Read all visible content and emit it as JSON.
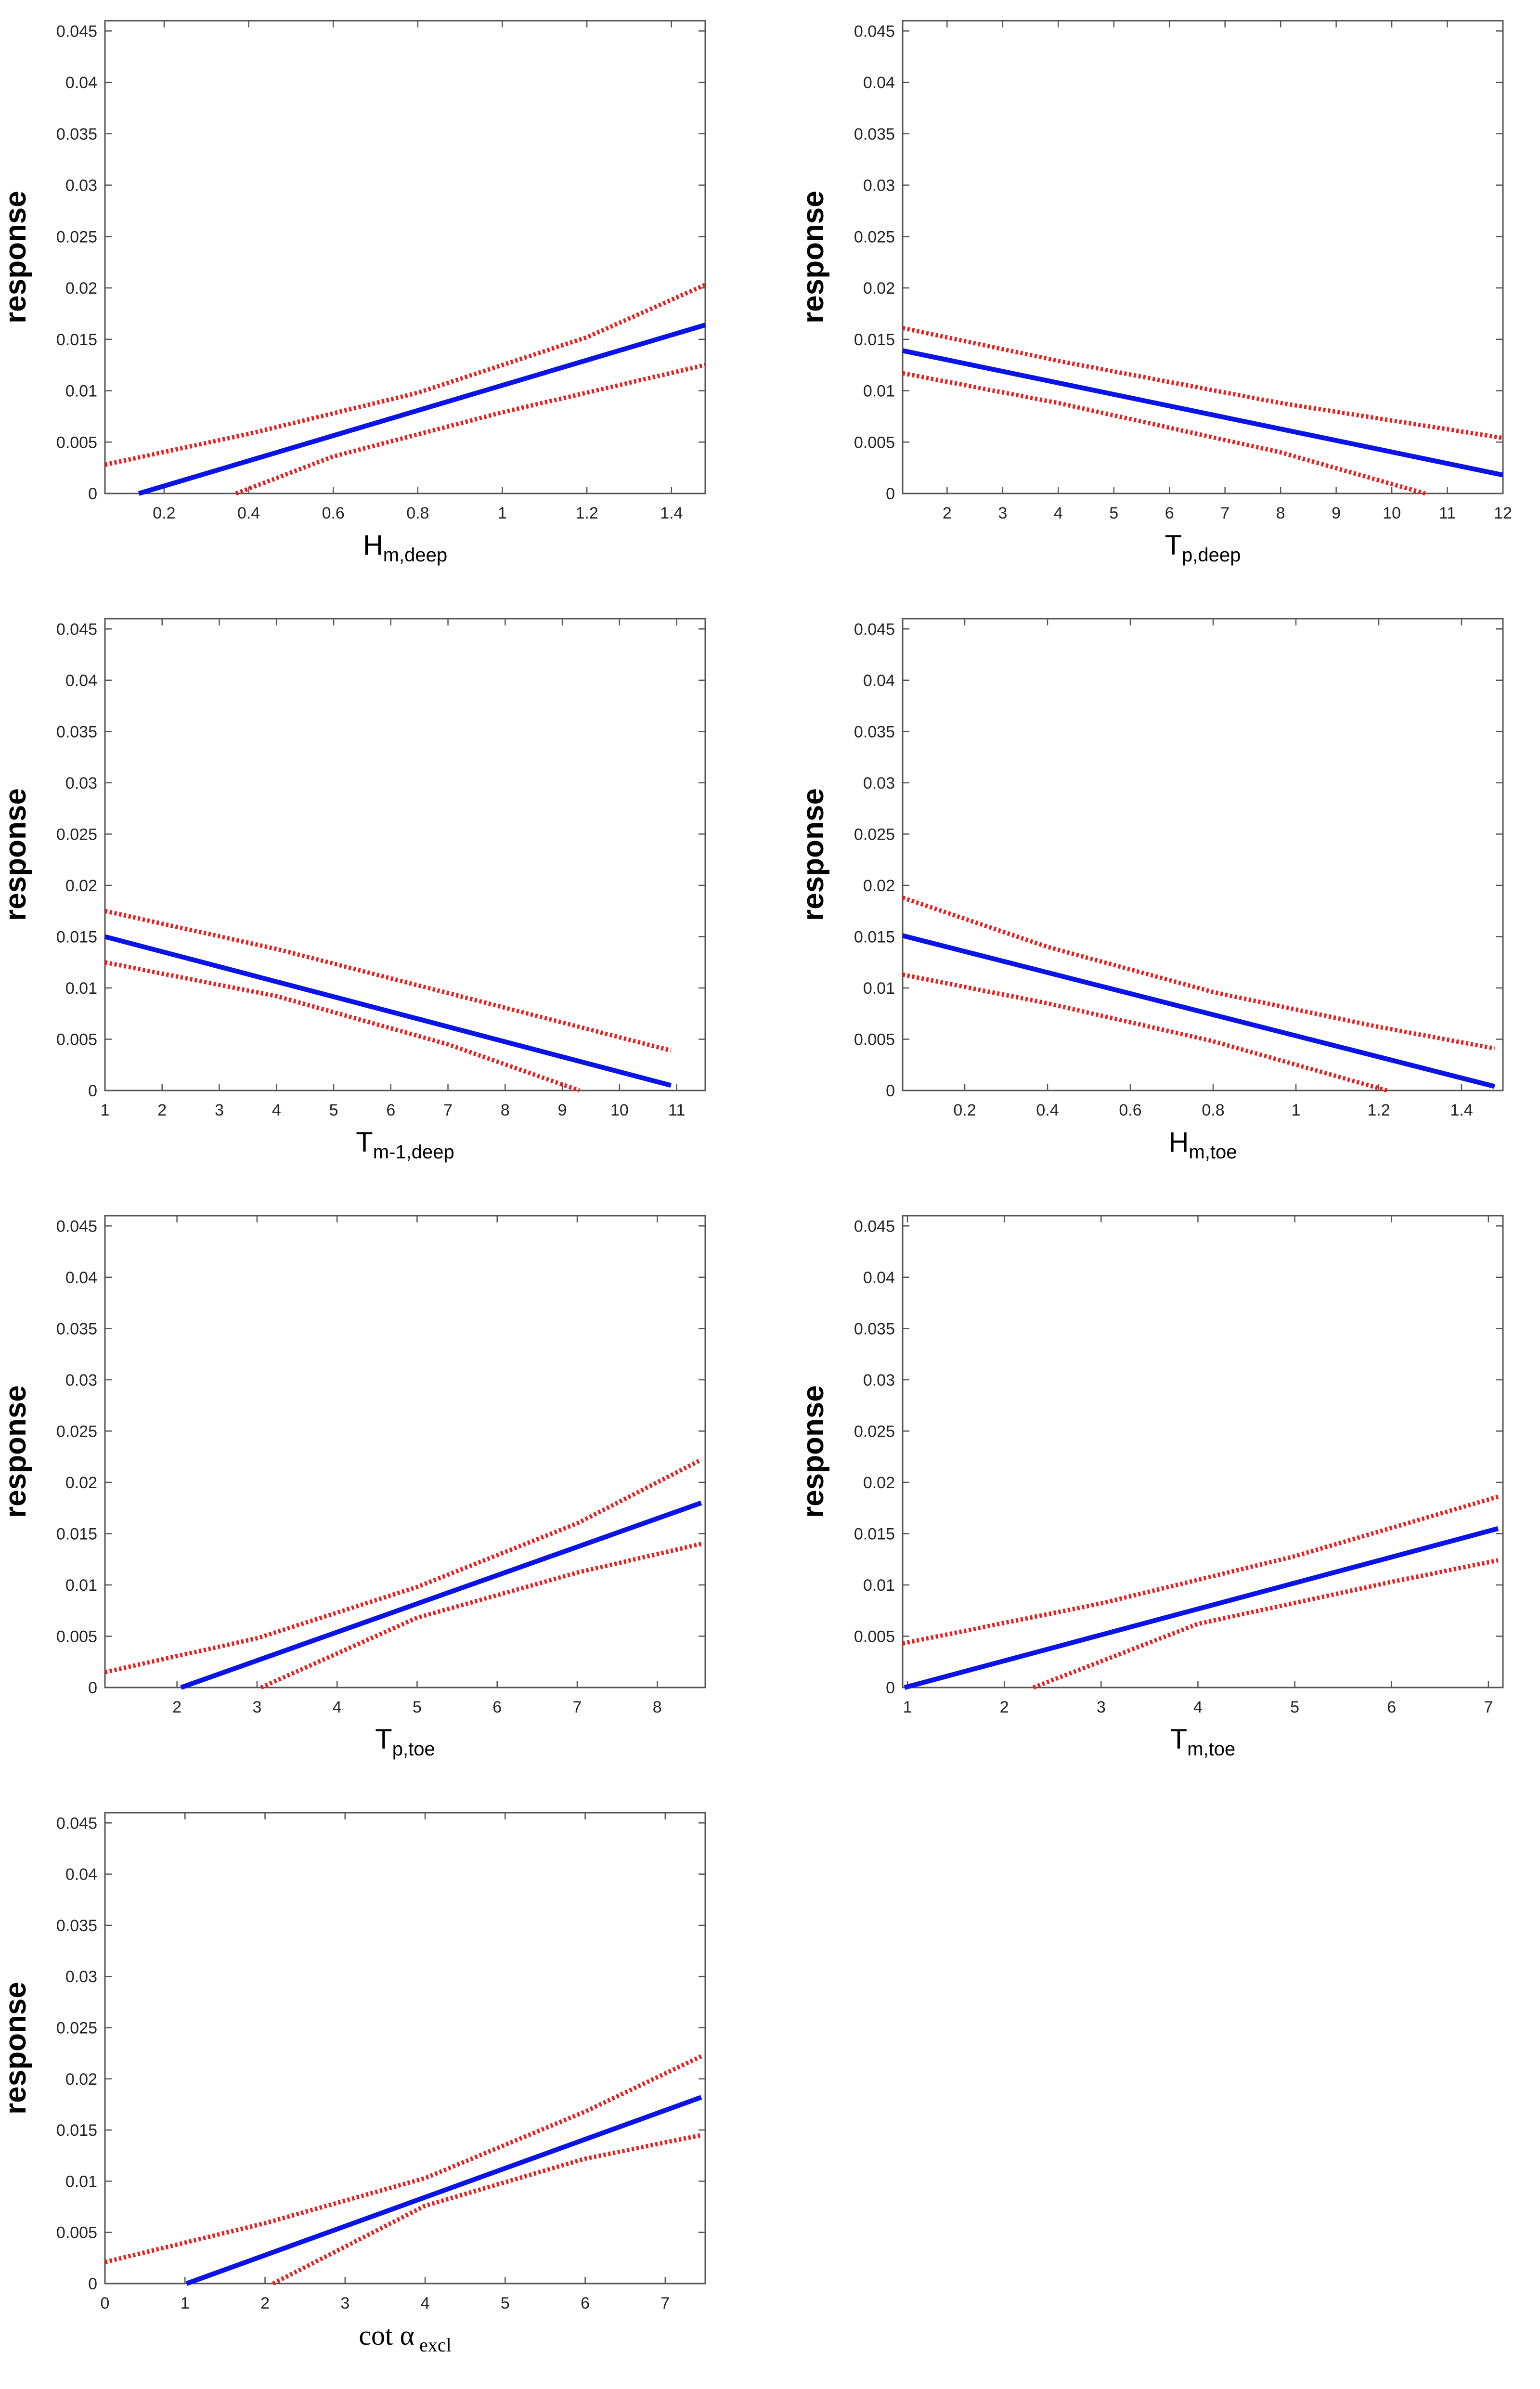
{
  "colors": {
    "fit": "#0a14e6",
    "ci": "#e61e1e",
    "axis": "#555555"
  },
  "chart_data": [
    {
      "id": "p1",
      "type": "line",
      "ylabel": "response",
      "xlabel_main": "H",
      "xlabel_sub": "m,deep",
      "xlim": [
        0.06,
        1.48
      ],
      "ylim": [
        0,
        0.046
      ],
      "xticks": [
        0.2,
        0.4,
        0.6,
        0.8,
        1,
        1.2,
        1.4
      ],
      "xtick_labels": [
        "0.2",
        "0.4",
        "0.6",
        "0.8",
        "1",
        "1.2",
        "1.4"
      ],
      "yticks": [
        0,
        0.005,
        0.01,
        0.015,
        0.02,
        0.025,
        0.03,
        0.035,
        0.04,
        0.045
      ],
      "ytick_labels": [
        "0",
        "0.005",
        "0.01",
        "0.015",
        "0.02",
        "0.025",
        "0.03",
        "0.035",
        "0.04",
        "0.045"
      ],
      "series": [
        {
          "name": "fit",
          "x": [
            0.14,
            1.48
          ],
          "y": [
            0,
            0.0164
          ]
        },
        {
          "name": "upper",
          "x": [
            0.06,
            0.4,
            0.8,
            1.2,
            1.48
          ],
          "y": [
            0.0028,
            0.0058,
            0.0098,
            0.0152,
            0.0203
          ]
        },
        {
          "name": "lower",
          "x": [
            0.37,
            0.6,
            1.0,
            1.48
          ],
          "y": [
            0,
            0.0036,
            0.0079,
            0.0125
          ]
        }
      ]
    },
    {
      "id": "p2",
      "type": "line",
      "ylabel": "response",
      "xlabel_main": "T",
      "xlabel_sub": "p,deep",
      "xlim": [
        1.2,
        12
      ],
      "ylim": [
        0,
        0.046
      ],
      "xticks": [
        2,
        3,
        4,
        5,
        6,
        7,
        8,
        9,
        10,
        11,
        12
      ],
      "xtick_labels": [
        "2",
        "3",
        "4",
        "5",
        "6",
        "7",
        "8",
        "9",
        "10",
        "11",
        "12"
      ],
      "yticks": [
        0,
        0.005,
        0.01,
        0.015,
        0.02,
        0.025,
        0.03,
        0.035,
        0.04,
        0.045
      ],
      "ytick_labels": [
        "0",
        "0.005",
        "0.01",
        "0.015",
        "0.02",
        "0.025",
        "0.03",
        "0.035",
        "0.04",
        "0.045"
      ],
      "series": [
        {
          "name": "fit",
          "x": [
            1.2,
            12
          ],
          "y": [
            0.0139,
            0.0018
          ]
        },
        {
          "name": "upper",
          "x": [
            1.2,
            4,
            8,
            12
          ],
          "y": [
            0.0161,
            0.0129,
            0.0088,
            0.0054
          ]
        },
        {
          "name": "lower",
          "x": [
            1.2,
            4,
            8,
            10.6
          ],
          "y": [
            0.0117,
            0.0088,
            0.004,
            0
          ]
        }
      ]
    },
    {
      "id": "p3",
      "type": "line",
      "ylabel": "response",
      "xlabel_main": "T",
      "xlabel_sub": "m-1,deep",
      "xlim": [
        1,
        11.5
      ],
      "ylim": [
        0,
        0.046
      ],
      "xticks": [
        1,
        2,
        3,
        4,
        5,
        6,
        7,
        8,
        9,
        10,
        11
      ],
      "xtick_labels": [
        "1",
        "2",
        "3",
        "4",
        "5",
        "6",
        "7",
        "8",
        "9",
        "10",
        "11"
      ],
      "yticks": [
        0,
        0.005,
        0.01,
        0.015,
        0.02,
        0.025,
        0.03,
        0.035,
        0.04,
        0.045
      ],
      "ytick_labels": [
        "0",
        "0.005",
        "0.01",
        "0.015",
        "0.02",
        "0.025",
        "0.03",
        "0.035",
        "0.04",
        "0.045"
      ],
      "series": [
        {
          "name": "fit",
          "x": [
            1,
            10.9
          ],
          "y": [
            0.015,
            0.0005
          ]
        },
        {
          "name": "upper",
          "x": [
            1,
            4,
            7,
            10.9
          ],
          "y": [
            0.0175,
            0.0138,
            0.0095,
            0.0039
          ]
        },
        {
          "name": "lower",
          "x": [
            1,
            4,
            7,
            9.3
          ],
          "y": [
            0.0125,
            0.0092,
            0.0045,
            0
          ]
        }
      ]
    },
    {
      "id": "p4",
      "type": "line",
      "ylabel": "response",
      "xlabel_main": "H",
      "xlabel_sub": "m,toe",
      "xlim": [
        0.05,
        1.5
      ],
      "ylim": [
        0,
        0.046
      ],
      "xticks": [
        0.2,
        0.4,
        0.6,
        0.8,
        1,
        1.2,
        1.4
      ],
      "xtick_labels": [
        "0.2",
        "0.4",
        "0.6",
        "0.8",
        "1",
        "1.2",
        "1.4"
      ],
      "yticks": [
        0,
        0.005,
        0.01,
        0.015,
        0.02,
        0.025,
        0.03,
        0.035,
        0.04,
        0.045
      ],
      "ytick_labels": [
        "0",
        "0.005",
        "0.01",
        "0.015",
        "0.02",
        "0.025",
        "0.03",
        "0.035",
        "0.04",
        "0.045"
      ],
      "series": [
        {
          "name": "fit",
          "x": [
            0.05,
            1.48
          ],
          "y": [
            0.0151,
            0.0004
          ]
        },
        {
          "name": "upper",
          "x": [
            0.05,
            0.4,
            0.8,
            1.2,
            1.48
          ],
          "y": [
            0.0188,
            0.014,
            0.0096,
            0.0062,
            0.0041
          ]
        },
        {
          "name": "lower",
          "x": [
            0.05,
            0.4,
            0.8,
            1.22
          ],
          "y": [
            0.0113,
            0.0085,
            0.0048,
            0
          ]
        }
      ]
    },
    {
      "id": "p5",
      "type": "line",
      "ylabel": "response",
      "xlabel_main": "T",
      "xlabel_sub": "p,toe",
      "xlim": [
        1.1,
        8.6
      ],
      "ylim": [
        0,
        0.046
      ],
      "xticks": [
        2,
        3,
        4,
        5,
        6,
        7,
        8
      ],
      "xtick_labels": [
        "2",
        "3",
        "4",
        "5",
        "6",
        "7",
        "8"
      ],
      "yticks": [
        0,
        0.005,
        0.01,
        0.015,
        0.02,
        0.025,
        0.03,
        0.035,
        0.04,
        0.045
      ],
      "ytick_labels": [
        "0",
        "0.005",
        "0.01",
        "0.015",
        "0.02",
        "0.025",
        "0.03",
        "0.035",
        "0.04",
        "0.045"
      ],
      "series": [
        {
          "name": "fit",
          "x": [
            2.05,
            8.55
          ],
          "y": [
            0,
            0.018
          ]
        },
        {
          "name": "upper",
          "x": [
            1.1,
            3,
            5,
            7,
            8.55
          ],
          "y": [
            0.0015,
            0.0048,
            0.0098,
            0.016,
            0.0222
          ]
        },
        {
          "name": "lower",
          "x": [
            3.05,
            5,
            7,
            8.55
          ],
          "y": [
            0,
            0.0068,
            0.0112,
            0.014
          ]
        }
      ]
    },
    {
      "id": "p6",
      "type": "line",
      "ylabel": "response",
      "xlabel_main": "T",
      "xlabel_sub": "m,toe",
      "xlim": [
        0.95,
        7.15
      ],
      "ylim": [
        0,
        0.046
      ],
      "xticks": [
        1,
        2,
        3,
        4,
        5,
        6,
        7
      ],
      "xtick_labels": [
        "1",
        "2",
        "3",
        "4",
        "5",
        "6",
        "7"
      ],
      "yticks": [
        0,
        0.005,
        0.01,
        0.015,
        0.02,
        0.025,
        0.03,
        0.035,
        0.04,
        0.045
      ],
      "ytick_labels": [
        "0",
        "0.005",
        "0.01",
        "0.015",
        "0.02",
        "0.025",
        "0.03",
        "0.035",
        "0.04",
        "0.045"
      ],
      "series": [
        {
          "name": "fit",
          "x": [
            0.97,
            7.1
          ],
          "y": [
            0,
            0.0155
          ]
        },
        {
          "name": "upper",
          "x": [
            0.95,
            3,
            5,
            7.1
          ],
          "y": [
            0.0043,
            0.0082,
            0.0128,
            0.0186
          ]
        },
        {
          "name": "lower",
          "x": [
            2.3,
            4,
            6,
            7.1
          ],
          "y": [
            0,
            0.0062,
            0.0103,
            0.0124
          ]
        }
      ]
    },
    {
      "id": "p7",
      "type": "line",
      "ylabel": "response",
      "xlabel_main": "cot α",
      "xlabel_sub": "excl",
      "xlim": [
        0,
        7.5
      ],
      "ylim": [
        0,
        0.046
      ],
      "xticks": [
        0,
        1,
        2,
        3,
        4,
        5,
        6,
        7
      ],
      "xtick_labels": [
        "0",
        "1",
        "2",
        "3",
        "4",
        "5",
        "6",
        "7"
      ],
      "yticks": [
        0,
        0.005,
        0.01,
        0.015,
        0.02,
        0.025,
        0.03,
        0.035,
        0.04,
        0.045
      ],
      "ytick_labels": [
        "0",
        "0.005",
        "0.01",
        "0.015",
        "0.02",
        "0.025",
        "0.03",
        "0.035",
        "0.04",
        "0.045"
      ],
      "series": [
        {
          "name": "fit",
          "x": [
            1.02,
            7.45
          ],
          "y": [
            0,
            0.0182
          ]
        },
        {
          "name": "upper",
          "x": [
            0,
            2,
            4,
            6,
            7.45
          ],
          "y": [
            0.0021,
            0.0059,
            0.0103,
            0.0168,
            0.0222
          ]
        },
        {
          "name": "lower",
          "x": [
            2.1,
            4,
            6,
            7.45
          ],
          "y": [
            0,
            0.0076,
            0.0122,
            0.0145
          ]
        }
      ]
    }
  ]
}
